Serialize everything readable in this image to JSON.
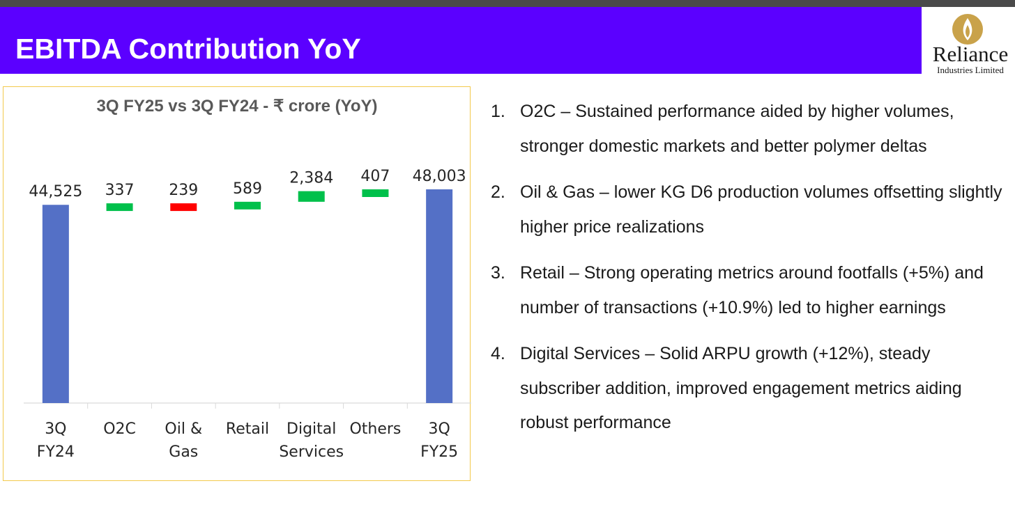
{
  "header": {
    "title": "EBITDA Contribution YoY",
    "logo_name": "Reliance",
    "logo_sub": "Industries Limited",
    "bar_color": "#5b00ff",
    "logo_icon": "reliance-flame-icon"
  },
  "chart_data": {
    "type": "bar",
    "subtype": "waterfall",
    "title": "3Q FY25 vs 3Q FY24 - ₹ crore (YoY)",
    "xlabel": "",
    "ylabel": "",
    "grid": false,
    "legend": "none",
    "categories": [
      "3Q FY24",
      "O2C",
      "Oil & Gas",
      "Retail",
      "Digital Services",
      "Others",
      "3Q FY25"
    ],
    "category_lines": [
      [
        "3Q",
        "FY24"
      ],
      [
        "O2C"
      ],
      [
        "Oil &",
        "Gas"
      ],
      [
        "Retail"
      ],
      [
        "Digital",
        "Services"
      ],
      [
        "Others"
      ],
      [
        "3Q",
        "FY25"
      ]
    ],
    "values": [
      44525,
      337,
      -239,
      589,
      2384,
      407,
      48003
    ],
    "labels": [
      "44,525",
      "337",
      "239",
      "589",
      "2,384",
      "407",
      "48,003"
    ],
    "kinds": [
      "total",
      "delta",
      "delta",
      "delta",
      "delta",
      "delta",
      "total"
    ],
    "colors": {
      "total": "#5470c6",
      "increase": "#00c04b",
      "decrease": "#ff0000"
    }
  },
  "notes": [
    {
      "num": "1.",
      "text": "O2C – Sustained performance aided by higher volumes, stronger domestic markets and better polymer deltas"
    },
    {
      "num": "2.",
      "text": "Oil & Gas – lower KG D6 production volumes offsetting slightly higher price realizations"
    },
    {
      "num": "3.",
      "text": "Retail – Strong operating metrics around footfalls (+5%) and number of transactions (+10.9%) led to higher earnings"
    },
    {
      "num": "4.",
      "text": "Digital Services – Solid ARPU growth (+12%), steady subscriber addition, improved engagement metrics aiding robust performance"
    }
  ]
}
